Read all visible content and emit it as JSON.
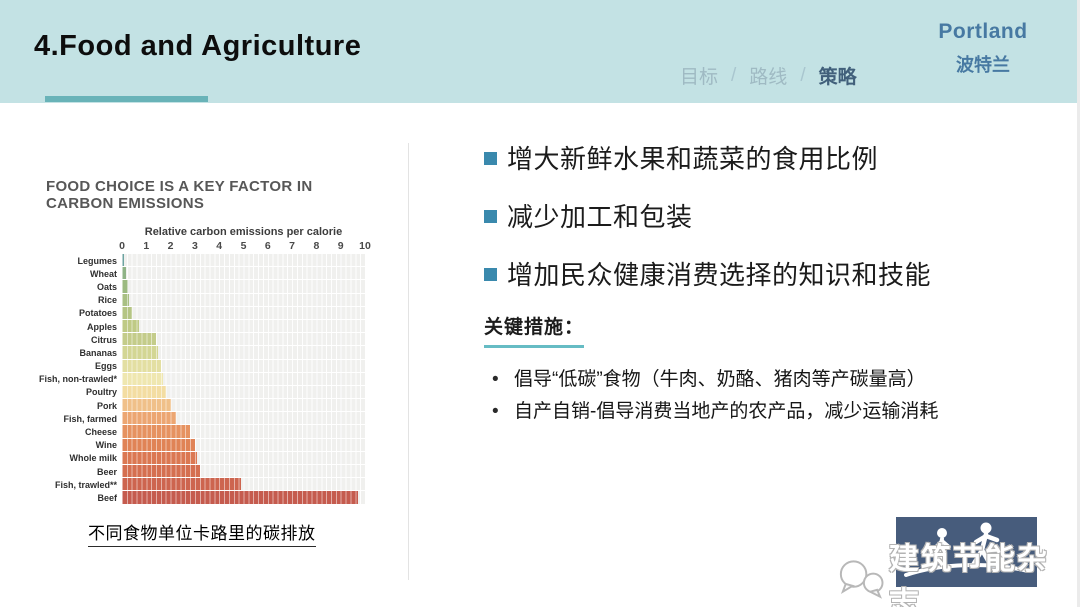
{
  "header": {
    "title": "4.Food and Agriculture",
    "nav": {
      "separator": "/",
      "items": [
        {
          "label": "目标",
          "active": false
        },
        {
          "label": "路线",
          "active": false
        },
        {
          "label": "策略",
          "active": true
        }
      ]
    },
    "brand": {
      "en": "Portland",
      "zh": "波特兰"
    }
  },
  "chart_data": {
    "type": "bar",
    "orientation": "horizontal",
    "title": "FOOD CHOICE IS A KEY FACTOR IN CARBON EMISSIONS",
    "axis_title": "Relative carbon emissions per calorie",
    "xlim": [
      0,
      10
    ],
    "ticks": [
      0,
      1,
      2,
      3,
      4,
      5,
      6,
      7,
      8,
      9,
      10
    ],
    "grid": "on",
    "categories": [
      "Legumes",
      "Wheat",
      "Oats",
      "Rice",
      "Potatoes",
      "Apples",
      "Citrus",
      "Bananas",
      "Eggs",
      "Fish, non-trawled*",
      "Poultry",
      "Pork",
      "Fish, farmed",
      "Cheese",
      "Wine",
      "Whole milk",
      "Beer",
      "Fish, trawled**",
      "Beef"
    ],
    "values": [
      0.1,
      0.15,
      0.25,
      0.3,
      0.4,
      0.7,
      1.4,
      1.5,
      1.6,
      1.7,
      1.8,
      2.0,
      2.2,
      2.8,
      3.0,
      3.1,
      3.2,
      4.9,
      9.7
    ],
    "bar_colors": [
      "#6ca3a0",
      "#8fb386",
      "#9cba80",
      "#a9c083",
      "#b5c584",
      "#bfca85",
      "#c4cc8a",
      "#d3d694",
      "#e3dfa2",
      "#efe7b0",
      "#f3dda2",
      "#f0c089",
      "#eca672",
      "#e69260",
      "#e08356",
      "#db7852",
      "#d56f50",
      "#cd654f",
      "#c55b4e"
    ],
    "caption": "不同食物单位卡路里的碳排放"
  },
  "right": {
    "bullets": [
      "增大新鲜水果和蔬菜的食用比例",
      "减少加工和包装",
      "增加民众健康消费选择的知识和技能"
    ],
    "key_measures_heading": "关键措施：",
    "key_measures": [
      "倡导“低碳”食物（牛肉、奶酪、猪肉等产碳量高）",
      "自产自销-倡导消费当地产的农产品，减少运输消耗"
    ],
    "measure_bullet": "•"
  },
  "watermark": {
    "text": "建筑节能杂志"
  },
  "colors": {
    "header_bg": "#c3e2e4",
    "accent_teal": "#69b3b8",
    "bullet_blue": "#3a89ad",
    "brand_blue": "#4779a2",
    "nav_inactive": "#9fbac3",
    "nav_active": "#41607b",
    "key_underline": "#66bcc4",
    "logo_bg": "#475c7c"
  }
}
